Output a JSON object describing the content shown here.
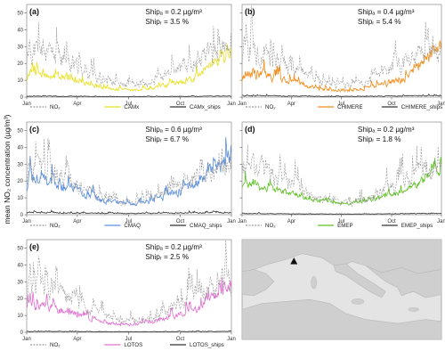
{
  "figure": {
    "ylabel": "mean NO₂ concentration (µg/m³)",
    "x_tick_labels": [
      "Jan",
      "Apr",
      "Jul",
      "Oct",
      "Jan"
    ],
    "y_tick_labels": [
      "0",
      "10",
      "20",
      "30",
      "40",
      "50"
    ],
    "map": {
      "marker": "triangle"
    }
  },
  "chart_data": [
    {
      "type": "line",
      "panel": "(a)",
      "model": "CAMx",
      "annotation": {
        "ship_abs": "Shipₐ = 0.2 µg/m³",
        "ship_rel": "Shipᵣ = 3.5 %"
      },
      "x_tick_labels": [
        "Jan",
        "Apr",
        "Jul",
        "Oct",
        "Jan"
      ],
      "ylim": [
        0,
        55
      ],
      "yticks": [
        0,
        10,
        20,
        30,
        40,
        50
      ],
      "legend": [
        "NO₂",
        "CAMx",
        "CAMx_ships"
      ],
      "series": [
        {
          "name": "NO₂",
          "color": "#9a9a9a",
          "dash": true,
          "base": 17,
          "seasonal": 0.6,
          "amp": 16,
          "seed": 11
        },
        {
          "name": "CAMx",
          "color": "#e8e01c",
          "base": 9,
          "seasonal": 0.55,
          "amp": 6,
          "seed": 12,
          "endRise": 12
        },
        {
          "name": "CAMx_ships",
          "color": "#333333",
          "base": 0.4,
          "seasonal": 0.3,
          "amp": 0.5,
          "seed": 13
        }
      ]
    },
    {
      "type": "line",
      "panel": "(b)",
      "model": "CHIMERE",
      "annotation": {
        "ship_abs": "Shipₐ = 0.4 µg/m³",
        "ship_rel": "Shipᵣ = 5.4 %"
      },
      "x_tick_labels": [
        "Jan",
        "Apr",
        "Jul",
        "Oct",
        "Jan"
      ],
      "ylim": [
        0,
        55
      ],
      "yticks": [
        0,
        10,
        20,
        30,
        40,
        50
      ],
      "legend": [
        "NO₂",
        "CHIMERE",
        "CHIMERE_ships"
      ],
      "series": [
        {
          "name": "NO₂",
          "color": "#9a9a9a",
          "dash": true,
          "base": 17,
          "seasonal": 0.6,
          "amp": 16,
          "seed": 21
        },
        {
          "name": "CHIMERE",
          "color": "#f28c1a",
          "base": 9,
          "seasonal": 0.6,
          "amp": 7,
          "seed": 22,
          "endRise": 18
        },
        {
          "name": "CHIMERE_ships",
          "color": "#333333",
          "base": 0.6,
          "seasonal": 0.3,
          "amp": 0.8,
          "seed": 23
        }
      ]
    },
    {
      "type": "line",
      "panel": "(c)",
      "model": "CMAQ",
      "annotation": {
        "ship_abs": "Shipₐ = 0.6 µg/m³",
        "ship_rel": "Shipᵣ = 6.7 %"
      },
      "x_tick_labels": [
        "Jan",
        "Apr",
        "Jul",
        "Oct",
        "Jan"
      ],
      "ylim": [
        0,
        55
      ],
      "yticks": [
        0,
        10,
        20,
        30,
        40,
        50
      ],
      "legend": [
        "NO₂",
        "CMAQ",
        "CMAQ_ships"
      ],
      "series": [
        {
          "name": "NO₂",
          "color": "#9a9a9a",
          "dash": true,
          "base": 17,
          "seasonal": 0.6,
          "amp": 16,
          "seed": 31
        },
        {
          "name": "CMAQ",
          "color": "#5b8fe0",
          "base": 14,
          "seasonal": 0.55,
          "amp": 10,
          "seed": 32,
          "endRise": 16
        },
        {
          "name": "CMAQ_ships",
          "color": "#333333",
          "base": 1.0,
          "seasonal": 0.3,
          "amp": 1.2,
          "seed": 33
        }
      ]
    },
    {
      "type": "line",
      "panel": "(d)",
      "model": "EMEP",
      "annotation": {
        "ship_abs": "Shipₐ = 0.2 µg/m³",
        "ship_rel": "Shipᵣ = 1.8 %"
      },
      "x_tick_labels": [
        "Jan",
        "Apr",
        "Jul",
        "Oct",
        "Jan"
      ],
      "ylim": [
        0,
        55
      ],
      "yticks": [
        0,
        10,
        20,
        30,
        40,
        50
      ],
      "legend": [
        "NO₂",
        "EMEP",
        "EMEP_ships"
      ],
      "series": [
        {
          "name": "NO₂",
          "color": "#9a9a9a",
          "dash": true,
          "base": 17,
          "seasonal": 0.6,
          "amp": 16,
          "seed": 41
        },
        {
          "name": "EMEP",
          "color": "#5cc021",
          "base": 12,
          "seasonal": 0.45,
          "amp": 6,
          "seed": 42,
          "endRise": 10
        },
        {
          "name": "EMEP_ships",
          "color": "#333333",
          "base": 0.5,
          "seasonal": 0.3,
          "amp": 0.5,
          "seed": 43
        }
      ]
    },
    {
      "type": "line",
      "panel": "(e)",
      "model": "LOTOS",
      "annotation": {
        "ship_abs": "Shipₐ = 0.2 µg/m³",
        "ship_rel": "Shipᵣ = 2.5 %"
      },
      "x_tick_labels": [
        "Jan",
        "Apr",
        "Jul",
        "Oct",
        "Jan"
      ],
      "ylim": [
        0,
        55
      ],
      "yticks": [
        0,
        10,
        20,
        30,
        40,
        50
      ],
      "legend": [
        "NO₂",
        "LOTOS",
        "LOTOS_ships"
      ],
      "series": [
        {
          "name": "NO₂",
          "color": "#9a9a9a",
          "dash": true,
          "base": 17,
          "seasonal": 0.6,
          "amp": 16,
          "seed": 51
        },
        {
          "name": "LOTOS",
          "color": "#e070d0",
          "base": 10,
          "seasonal": 0.55,
          "amp": 7,
          "seed": 52,
          "endRise": 14
        },
        {
          "name": "LOTOS_ships",
          "color": "#333333",
          "base": 0.4,
          "seasonal": 0.3,
          "amp": 0.5,
          "seed": 53
        }
      ]
    }
  ]
}
